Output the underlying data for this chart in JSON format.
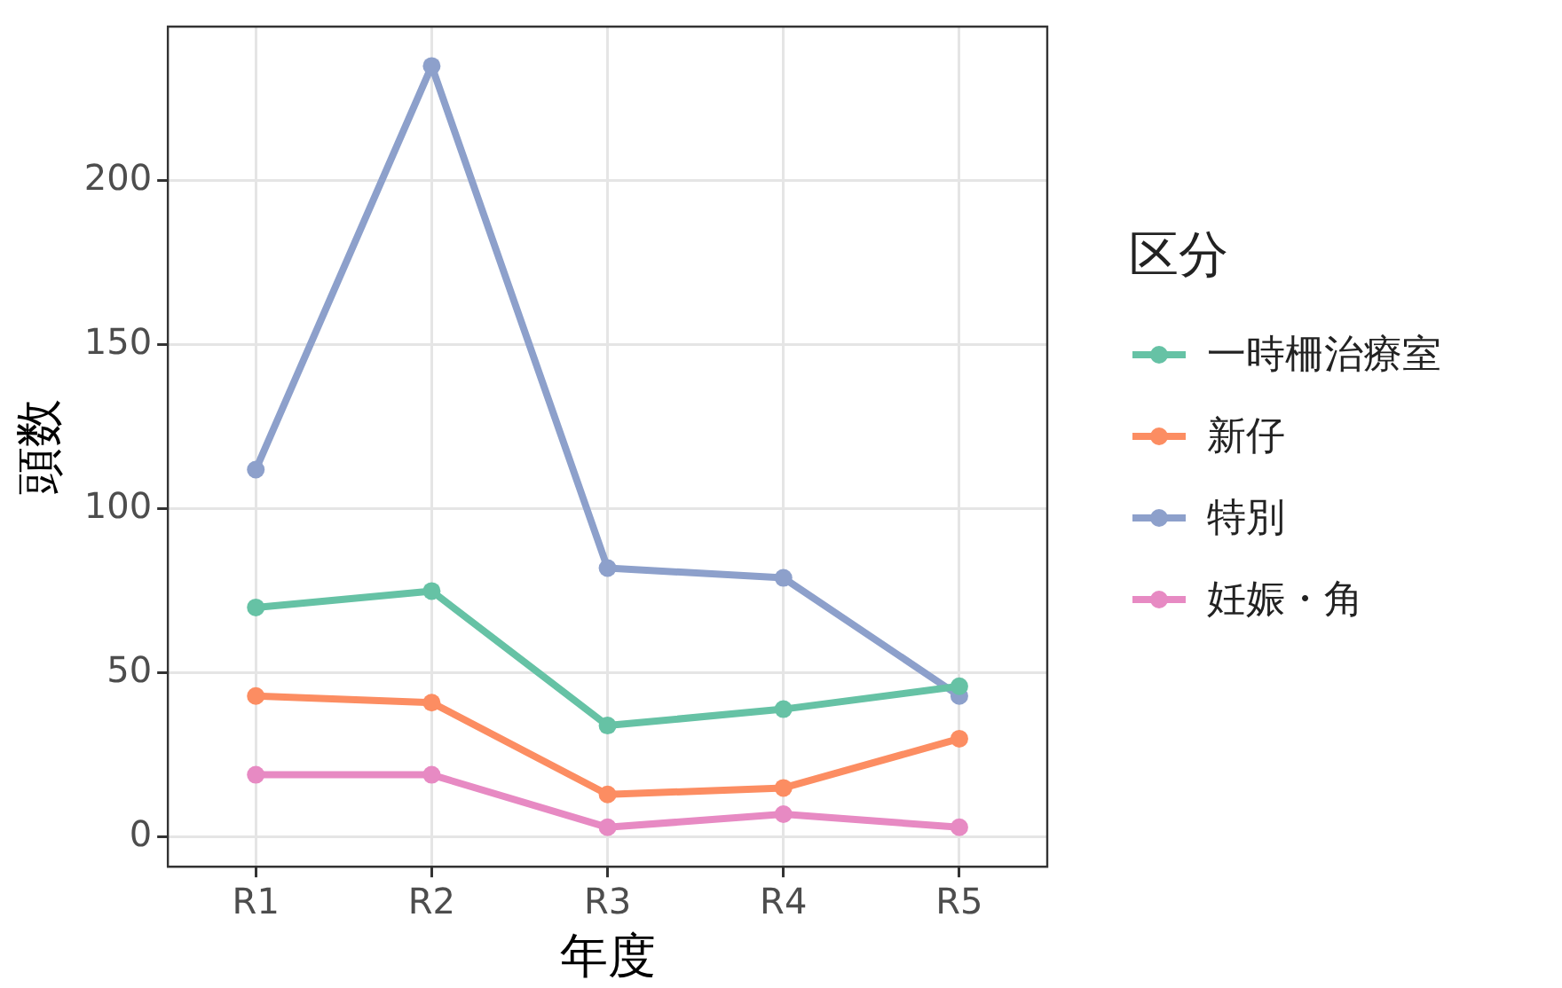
{
  "chart_data": {
    "type": "line",
    "xlabel": "年度",
    "ylabel": "頭数",
    "legend_title": "区分",
    "legend": "right",
    "grid": true,
    "marker": "circle",
    "line_style": "solid",
    "categories": [
      "R1",
      "R2",
      "R3",
      "R4",
      "R5"
    ],
    "ylim": [
      -9,
      247
    ],
    "yticks": [
      0,
      50,
      100,
      150,
      200
    ],
    "series": [
      {
        "name": "一時柵治療室",
        "color": "#66c2a5",
        "values": [
          70,
          75,
          34,
          39,
          46
        ]
      },
      {
        "name": "新仔",
        "color": "#fc8d62",
        "values": [
          43,
          41,
          13,
          15,
          30
        ]
      },
      {
        "name": "特別",
        "color": "#8da0cb",
        "values": [
          112,
          235,
          82,
          79,
          43
        ]
      },
      {
        "name": "妊娠・角",
        "color": "#e78ac3",
        "values": [
          19,
          19,
          3,
          7,
          3
        ]
      }
    ]
  }
}
